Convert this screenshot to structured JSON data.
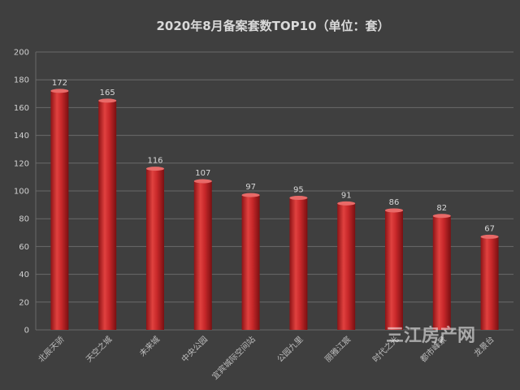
{
  "chart_data": {
    "type": "bar",
    "title": "2020年8月备案套数TOP10（单位：套）",
    "categories": [
      "北辰天骄",
      "天空之城",
      "未来城",
      "中央公园",
      "宜宾城际空间站",
      "公园九里",
      "丽雅江宸",
      "时代之光",
      "都市峰景",
      "龙景台"
    ],
    "values": [
      172,
      165,
      116,
      107,
      97,
      95,
      91,
      86,
      82,
      67
    ],
    "ylim": [
      0,
      200
    ],
    "yticks": [
      0,
      20,
      40,
      60,
      80,
      100,
      120,
      140,
      160,
      180,
      200
    ],
    "xlabel": "",
    "ylabel": "",
    "grid": true
  },
  "watermark": "三江房产网",
  "colors": {
    "background": "#3f3f3f",
    "bar": "#c8282a",
    "bar_highlight": "#e86a68",
    "grid": "#6a6a6a"
  }
}
